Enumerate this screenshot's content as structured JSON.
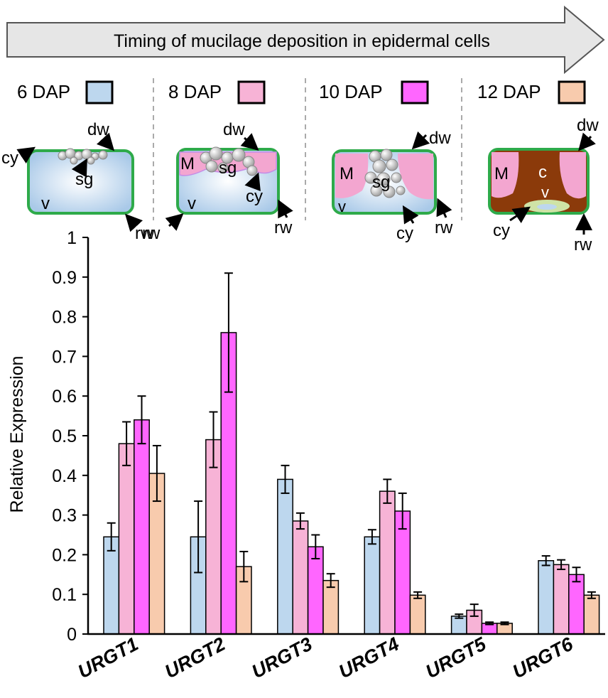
{
  "banner": {
    "text": "Timing of mucilage deposition in epidermal cells"
  },
  "stages": [
    {
      "label": "6 DAP",
      "color": "#bdd7ee",
      "callouts": [
        "dw",
        "cy",
        "sg",
        "v",
        "rw"
      ]
    },
    {
      "label": "8 DAP",
      "color": "#f7b3d6",
      "callouts": [
        "dw",
        "M",
        "sg",
        "cy",
        "v",
        "rw",
        "rw"
      ]
    },
    {
      "label": "10 DAP",
      "color": "#ff66ff",
      "callouts": [
        "dw",
        "M",
        "sg",
        "v",
        "cy",
        "rw"
      ]
    },
    {
      "label": "12 DAP",
      "color": "#f8cbad",
      "callouts": [
        "dw",
        "M",
        "c",
        "v",
        "cy",
        "rw"
      ]
    }
  ],
  "colors": {
    "cell_border": "#2eaa4a",
    "vacuole": "#c9ddf0",
    "mucilage": "#f3a6d0",
    "column": "#8b3a0a",
    "starch": "#b8b8b8",
    "axis": "#000000"
  },
  "chart_data": {
    "type": "bar",
    "ylabel": "Relative Expression",
    "ylim": [
      0,
      1
    ],
    "yticks": [
      0,
      0.1,
      0.2,
      0.3,
      0.4,
      0.5,
      0.6,
      0.7,
      0.8,
      0.9,
      1
    ],
    "ytick_labels": [
      "0",
      "0.1",
      "0.2",
      "0.3",
      "0.4",
      "0.5",
      "0.6",
      "0.7",
      "0.8",
      "0.9",
      "1"
    ],
    "categories": [
      "URGT1",
      "URGT2",
      "URGT3",
      "URGT4",
      "URGT5",
      "URGT6"
    ],
    "series": [
      {
        "name": "6 DAP",
        "color": "#bdd7ee",
        "values": [
          0.245,
          0.245,
          0.39,
          0.245,
          0.045,
          0.185
        ],
        "errors": [
          0.035,
          0.09,
          0.035,
          0.018,
          0.005,
          0.012
        ]
      },
      {
        "name": "8 DAP",
        "color": "#f7b3d6",
        "values": [
          0.48,
          0.49,
          0.285,
          0.36,
          0.06,
          0.175
        ],
        "errors": [
          0.055,
          0.07,
          0.02,
          0.03,
          0.015,
          0.012
        ]
      },
      {
        "name": "10 DAP",
        "color": "#ff66ff",
        "values": [
          0.54,
          0.76,
          0.22,
          0.31,
          0.027,
          0.15
        ],
        "errors": [
          0.06,
          0.15,
          0.03,
          0.045,
          0.003,
          0.018
        ]
      },
      {
        "name": "12 DAP",
        "color": "#f8cbad",
        "values": [
          0.405,
          0.17,
          0.135,
          0.098,
          0.027,
          0.098
        ],
        "errors": [
          0.07,
          0.038,
          0.017,
          0.008,
          0.003,
          0.008
        ]
      }
    ]
  }
}
